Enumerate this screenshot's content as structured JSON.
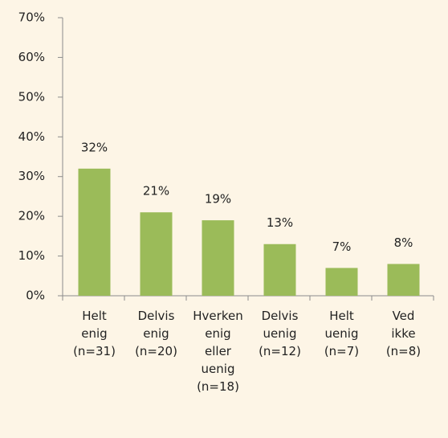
{
  "chart_data": {
    "type": "bar",
    "categories": [
      "Helt enig (n=31)",
      "Delvis enig (n=20)",
      "Hverken enig eller uenig (n=18)",
      "Delvis uenig (n=12)",
      "Helt uenig (n=7)",
      "Ved ikke (n=8)"
    ],
    "values": [
      32,
      21,
      19,
      13,
      7,
      8
    ],
    "value_labels": [
      "32%",
      "21%",
      "19%",
      "13%",
      "7%",
      "8%"
    ],
    "color": "#9bbb59",
    "ylim": [
      0,
      70
    ],
    "yticks": [
      {
        "value": 0,
        "label": "0%"
      },
      {
        "value": 10,
        "label": "10%"
      },
      {
        "value": 20,
        "label": "20%"
      },
      {
        "value": 30,
        "label": "30%"
      },
      {
        "value": 40,
        "label": "40%"
      },
      {
        "value": 50,
        "label": "50%"
      },
      {
        "value": 60,
        "label": "60%"
      },
      {
        "value": 70,
        "label": "70%"
      }
    ],
    "grid": false
  }
}
